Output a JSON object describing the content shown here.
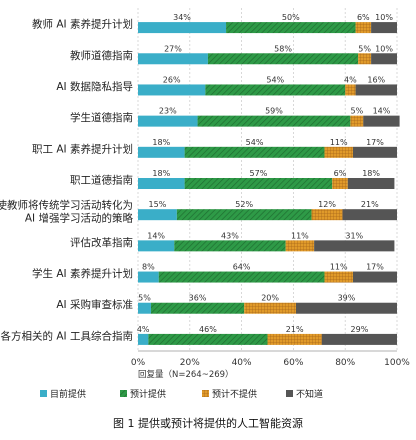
{
  "chart_data": {
    "type": "bar",
    "orientation": "horizontal",
    "stacked": true,
    "categories": [
      "教师 AI 素养提升计划",
      "教师道德指南",
      "AI 数据隐私指导",
      "学生道德指南",
      "职工 AI 素养提升计划",
      "职工道德指南",
      "使教师将传统学习活动转化为 AI 增强学习活动的策略",
      "评估改革指南",
      "学生 AI 素养提升计划",
      "AI 采购审查标准",
      "各方相关的 AI 工具综合指南"
    ],
    "series": [
      {
        "name": "目前提供",
        "color": "#3aaec8",
        "pattern": "solid",
        "values": [
          34,
          27,
          26,
          23,
          18,
          18,
          15,
          14,
          8,
          5,
          4
        ],
        "labels": [
          "34%",
          "27%",
          "26%",
          "23%",
          "18%",
          "18%",
          "15%",
          "14%",
          "8%",
          "5%",
          "4%"
        ]
      },
      {
        "name": "预计提供",
        "color": "#2e9a47",
        "pattern": "diagonal",
        "values": [
          50,
          58,
          54,
          59,
          54,
          57,
          52,
          43,
          64,
          36,
          46
        ],
        "labels": [
          "50%",
          "58%",
          "54%",
          "59%",
          "54%",
          "57%",
          "52%",
          "43%",
          "64%",
          "36%",
          "46%"
        ]
      },
      {
        "name": "预计不提供",
        "color": "#e09a2a",
        "pattern": "grid",
        "values": [
          6,
          5,
          4,
          5,
          11,
          6,
          12,
          11,
          11,
          20,
          21
        ],
        "labels": [
          "6%",
          "5%",
          "4%",
          "5%",
          "11%",
          "6%",
          "12%",
          "11%",
          "11%",
          "20%",
          "21%"
        ]
      },
      {
        "name": "不知道",
        "color": "#555555",
        "pattern": "solid",
        "values": [
          10,
          10,
          16,
          14,
          17,
          18,
          21,
          31,
          17,
          39,
          29
        ],
        "labels": [
          "10%",
          "10%",
          "16%",
          "14%",
          "17%",
          "18%",
          "21%",
          "31%",
          "17%",
          "39%",
          "29%"
        ]
      }
    ],
    "x_ticks": [
      "0%",
      "20%",
      "40%",
      "60%",
      "80%",
      "100%"
    ],
    "xlim": [
      0,
      100
    ],
    "x_note": "回复量（N=264~269）",
    "legend_position": "bottom",
    "caption": "图 1  提供或预计将提供的人工智能资源"
  }
}
